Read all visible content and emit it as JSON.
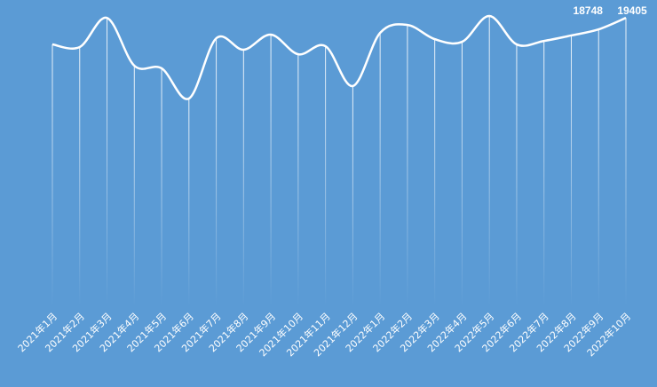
{
  "chart_data": {
    "type": "line",
    "categories": [
      "2021年1月",
      "2021年2月",
      "2021年3月",
      "2021年4月",
      "2021年5月",
      "2021年6月",
      "2021年7月",
      "2021年8月",
      "2021年9月",
      "2021年10月",
      "2021年11月",
      "2021年12月",
      "2022年1月",
      "2022年2月",
      "2022年3月",
      "2022年4月",
      "2022年5月",
      "2022年6月",
      "2022年7月",
      "2022年8月",
      "2022年9月",
      "2022年10月"
    ],
    "values": [
      17890,
      17740,
      19400,
      16680,
      16530,
      14810,
      18240,
      17590,
      18450,
      17330,
      17790,
      15520,
      18550,
      19000,
      18190,
      18040,
      19510,
      17890,
      18090,
      18400,
      18748,
      19405
    ],
    "color": "#ffffff"
  }
}
